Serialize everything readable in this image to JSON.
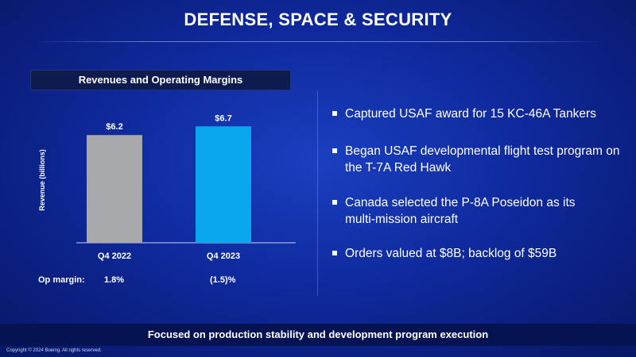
{
  "slide": {
    "title": "DEFENSE, SPACE & SECURITY",
    "footer": "Focused on production stability and development program execution",
    "copyright": "Copyright © 2024 Boeing. All rights reserved."
  },
  "chart_data": {
    "type": "bar",
    "title": "Revenues and Operating Margins",
    "categories": [
      "Q4 2022",
      "Q4 2023"
    ],
    "values": [
      6.2,
      6.7
    ],
    "value_labels": [
      "$6.2",
      "$6.7"
    ],
    "ylabel": "Revenue (billions)",
    "bar_colors": [
      "#a6a8ab",
      "#0aa6ee"
    ],
    "grid": false,
    "op_margin_label": "Op margin:",
    "op_margins": [
      "1.8%",
      "(1.5)%"
    ]
  },
  "bullets": [
    "Captured USAF award for 15 KC-46A Tankers",
    "Began USAF developmental flight test program on the T-7A Red Hawk",
    "Canada selected the P-8A Poseidon as its multi-mission aircraft",
    "Orders valued at $8B; backlog of $59B"
  ]
}
